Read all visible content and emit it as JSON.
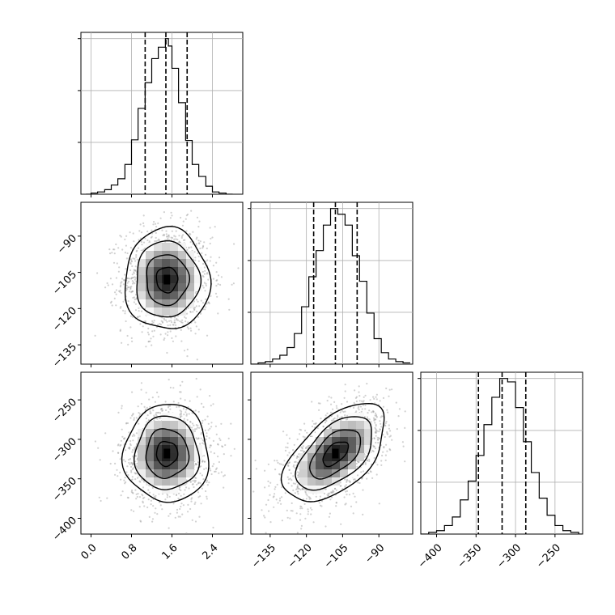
{
  "chart_data": {
    "type": "corner",
    "parameters": [
      {
        "range": [
          -0.2,
          3.0
        ],
        "ticks": [
          0.0,
          0.8,
          1.6,
          2.4
        ],
        "tick_labels": [
          "0.0",
          "0.8",
          "1.6",
          "2.4"
        ],
        "quantiles": [
          1.07,
          1.48,
          1.9
        ],
        "histogram": {
          "bin_edges": [
            -0.1,
            0.0,
            0.13,
            0.27,
            0.4,
            0.53,
            0.67,
            0.8,
            0.93,
            1.07,
            1.2,
            1.33,
            1.47,
            1.53,
            1.6,
            1.73,
            1.87,
            2.0,
            2.13,
            2.27,
            2.4,
            2.53,
            2.67,
            2.8
          ],
          "counts": [
            0,
            2,
            4,
            8,
            16,
            27,
            52,
            95,
            150,
            195,
            237,
            257,
            272,
            259,
            220,
            160,
            94,
            52,
            31,
            14,
            4,
            2,
            0
          ]
        }
      },
      {
        "range": [
          -143,
          -76
        ],
        "ticks": [
          -135,
          -120,
          -105,
          -90
        ],
        "tick_labels": [
          "−135",
          "−120",
          "−105",
          "−90"
        ],
        "quantiles": [
          -117,
          -108,
          -99
        ],
        "histogram": {
          "bin_edges": [
            -143,
            -140,
            -137,
            -134,
            -131,
            -128,
            -125,
            -122,
            -119,
            -116,
            -113,
            -110,
            -107,
            -104,
            -101,
            -98,
            -95,
            -92,
            -89,
            -86,
            -83,
            -80,
            -77
          ],
          "counts": [
            0,
            2,
            4,
            8,
            14,
            26,
            48,
            90,
            137,
            178,
            218,
            244,
            235,
            218,
            170,
            130,
            80,
            40,
            18,
            8,
            4,
            2
          ]
        }
      },
      {
        "range": [
          -420,
          -215
        ],
        "ticks": [
          -400,
          -350,
          -300,
          -250
        ],
        "tick_labels": [
          "−400",
          "−350",
          "−300",
          "−250"
        ],
        "quantiles": [
          -347,
          -317,
          -287
        ],
        "histogram": {
          "bin_edges": [
            -420,
            -410,
            -400,
            -390,
            -380,
            -370,
            -360,
            -350,
            -340,
            -330,
            -320,
            -310,
            -300,
            -290,
            -280,
            -270,
            -260,
            -250,
            -240,
            -230,
            -220,
            -215
          ],
          "counts": [
            0,
            2,
            4,
            10,
            20,
            40,
            62,
            92,
            128,
            160,
            182,
            178,
            148,
            108,
            72,
            42,
            22,
            10,
            4,
            2,
            0
          ]
        }
      }
    ],
    "pairs": [
      {
        "row": 1,
        "col": 0,
        "mean": [
          1.5,
          -108
        ],
        "std": [
          0.42,
          10.5
        ],
        "corr": 0.0,
        "contours": [
          0.5,
          1.0,
          1.5,
          2.0
        ],
        "grid": false
      },
      {
        "row": 2,
        "col": 0,
        "mean": [
          1.5,
          -318
        ],
        "std": [
          0.42,
          31
        ],
        "corr": 0.0,
        "contours": [
          0.5,
          1.0,
          1.5,
          2.0
        ],
        "grid": false
      },
      {
        "row": 2,
        "col": 1,
        "mean": [
          -108,
          -318
        ],
        "std": [
          10.5,
          31
        ],
        "corr": 0.55,
        "contours": [
          0.5,
          1.0,
          1.5,
          2.0
        ],
        "grid": false
      }
    ],
    "grid": true,
    "quantile_style": "dashed"
  }
}
